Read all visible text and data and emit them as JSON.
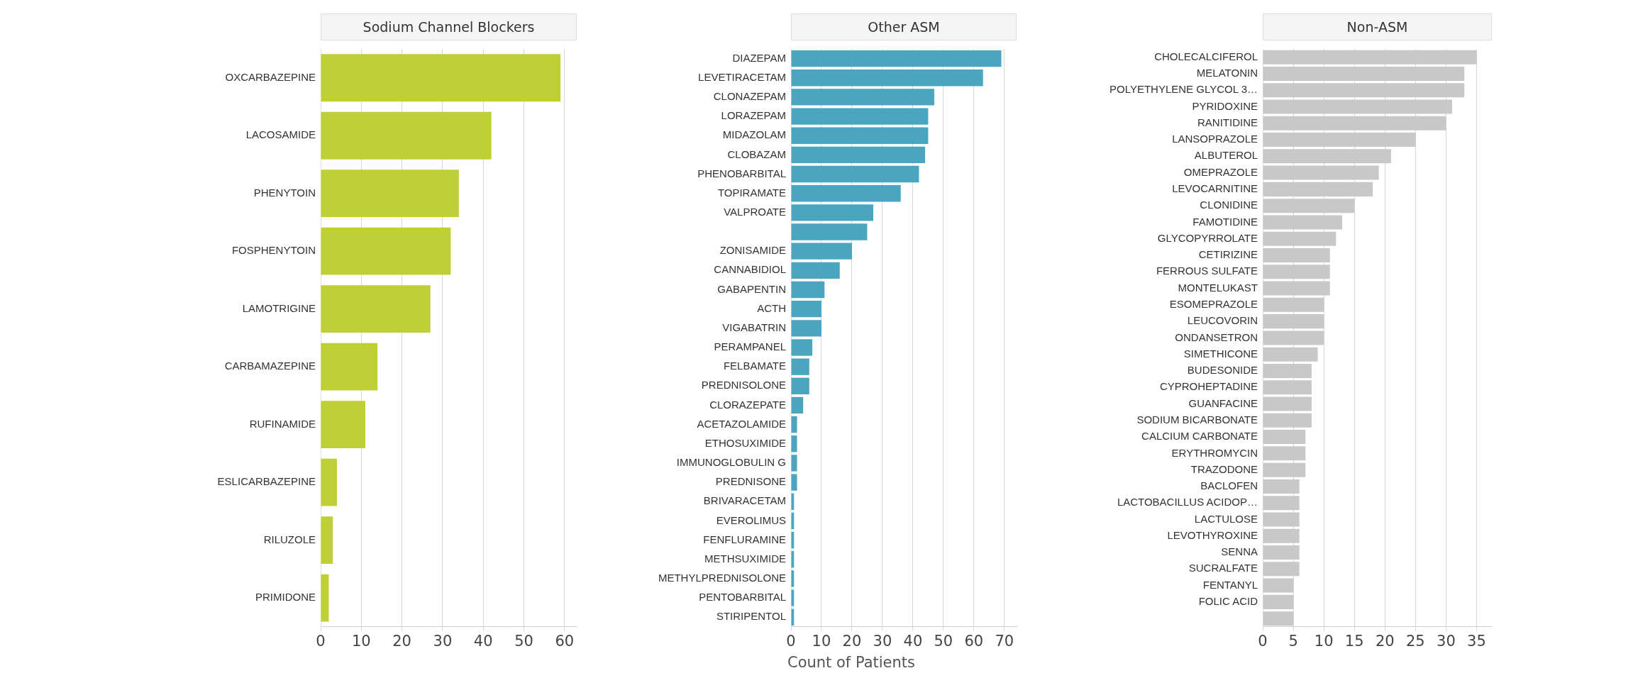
{
  "chart_data": [
    {
      "type": "bar",
      "orientation": "horizontal",
      "title": "Sodium Channel Blockers",
      "categories": [
        "OXCARBAZEPINE",
        "LACOSAMIDE",
        "PHENYTOIN",
        "FOSPHENYTOIN",
        "LAMOTRIGINE",
        "CARBAMAZEPINE",
        "RUFINAMIDE",
        "ESLICARBAZEPINE",
        "RILUZOLE",
        "PRIMIDONE"
      ],
      "values": [
        59,
        42,
        34,
        32,
        27,
        14,
        11,
        4,
        3,
        2
      ],
      "color": "#bfcf36",
      "xlim": [
        0,
        63
      ],
      "xticks": [
        0,
        10,
        20,
        30,
        40,
        50,
        60
      ],
      "grid": "x",
      "legend": false
    },
    {
      "type": "bar",
      "orientation": "horizontal",
      "title": "Other ASM",
      "xlabel": "Count of Patients",
      "categories": [
        "DIAZEPAM",
        "LEVETIRACETAM",
        "CLONAZEPAM",
        "LORAZEPAM",
        "MIDAZOLAM",
        "CLOBAZAM",
        "PHENOBARBITAL",
        "TOPIRAMATE",
        "VALPROATE",
        null,
        "ZONISAMIDE",
        "CANNABIDIOL",
        "GABAPENTIN",
        "ACTH",
        "VIGABATRIN",
        "PERAMPANEL",
        "FELBAMATE",
        "PREDNISOLONE",
        "CLORAZEPATE",
        "ACETAZOLAMIDE",
        "ETHOSUXIMIDE",
        "IMMUNOGLOBULIN G",
        "PREDNISONE",
        "BRIVARACETAM",
        "EVEROLIMUS",
        "FENFLURAMINE",
        "METHSUXIMIDE",
        "METHYLPREDNISOLONE",
        "PENTOBARBITAL",
        "STIRIPENTOL"
      ],
      "values": [
        69,
        63,
        47,
        45,
        45,
        44,
        42,
        36,
        27,
        25,
        20,
        16,
        11,
        10,
        10,
        7,
        6,
        6,
        4,
        2,
        2,
        2,
        2,
        1,
        1,
        1,
        1,
        1,
        1,
        1
      ],
      "color": "#4aa6bf",
      "xlim": [
        0,
        74
      ],
      "xticks": [
        0,
        10,
        20,
        30,
        40,
        50,
        60,
        70
      ],
      "grid": "x",
      "legend": false
    },
    {
      "type": "bar",
      "orientation": "horizontal",
      "title": "Non-ASM",
      "categories": [
        "CHOLECALCIFEROL",
        "MELATONIN",
        "POLYETHYLENE GLYCOL 3…",
        "PYRIDOXINE",
        "RANITIDINE",
        "LANSOPRAZOLE",
        "ALBUTEROL",
        "OMEPRAZOLE",
        "LEVOCARNITINE",
        "CLONIDINE",
        "FAMOTIDINE",
        "GLYCOPYRROLATE",
        "CETIRIZINE",
        "FERROUS SULFATE",
        "MONTELUKAST",
        "ESOMEPRAZOLE",
        "LEUCOVORIN",
        "ONDANSETRON",
        "SIMETHICONE",
        "BUDESONIDE",
        "CYPROHEPTADINE",
        "GUANFACINE",
        "SODIUM BICARBONATE",
        "CALCIUM CARBONATE",
        "ERYTHROMYCIN",
        "TRAZODONE",
        "BACLOFEN",
        "LACTOBACILLUS ACIDOP…",
        "LACTULOSE",
        "LEVOTHYROXINE",
        "SENNA",
        "SUCRALFATE",
        "FENTANYL",
        "FOLIC ACID",
        null
      ],
      "values": [
        35,
        33,
        33,
        31,
        30,
        25,
        21,
        19,
        18,
        15,
        13,
        12,
        11,
        11,
        11,
        10,
        10,
        10,
        9,
        8,
        8,
        8,
        8,
        7,
        7,
        7,
        6,
        6,
        6,
        6,
        6,
        6,
        5,
        5,
        5
      ],
      "color": "#c8c8c8",
      "xlim": [
        0,
        37.5
      ],
      "xticks": [
        0,
        5,
        10,
        15,
        20,
        25,
        30,
        35
      ],
      "grid": "x",
      "legend": false
    }
  ]
}
